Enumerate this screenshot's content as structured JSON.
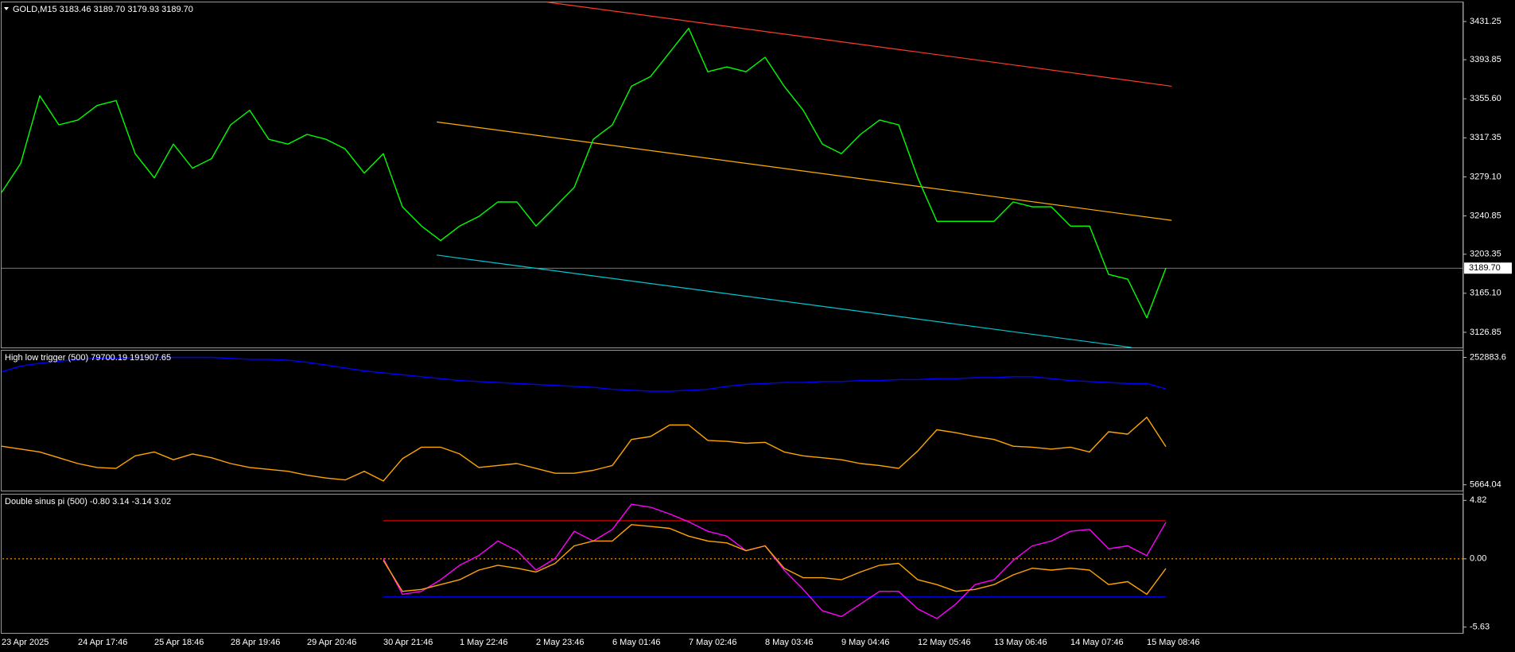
{
  "chart_data": [
    {
      "type": "line",
      "title": "GOLD,M15  3183.46 3189.70 3179.93 3189.70",
      "ylim": [
        3112,
        3450
      ],
      "yticks": [
        3431.25,
        3393.85,
        {
          "value": 3355.6,
          "label": "3355.60"
        },
        3317.35,
        {
          "value": 3279.1,
          "label": "3279.10"
        },
        3240.85,
        3203.35,
        {
          "value": 3165.1,
          "label": "3165.10"
        },
        3126.85
      ],
      "price_label": {
        "value": 3189.7,
        "label": "3189.70"
      },
      "series": [
        {
          "color": "#00ff00",
          "values": [
            3263.9,
            3292.3,
            3358.5,
            3330.1,
            3334.8,
            3349.0,
            3353.8,
            3301.8,
            3278.1,
            3311.2,
            3287.6,
            3297.0,
            3330.1,
            3344.3,
            3315.9,
            3311.2,
            3320.7,
            3315.9,
            3306.5,
            3282.8,
            3301.8,
            3249.8,
            3230.9,
            3216.7,
            3230.9,
            3240.3,
            3254.5,
            3254.5,
            3230.9,
            3249.8,
            3268.7,
            3315.9,
            3330.1,
            3367.9,
            3377.4,
            3401.0,
            3424.6,
            3382.1,
            3386.8,
            3382.1,
            3396.3,
            3367.9,
            3344.3,
            3311.2,
            3301.8,
            3320.7,
            3334.8,
            3330.1,
            3278.1,
            3235.6,
            3235.6,
            3235.6,
            3235.6,
            3254.5,
            3249.8,
            3249.8,
            3230.9,
            3230.9,
            3183.6,
            3178.9,
            3141.0,
            3189.7
          ]
        }
      ],
      "trendlines": [
        {
          "color": "#ff3a2a",
          "x": [
            28.6,
            61.3
          ],
          "values": [
            3450.2,
            3367.9
          ]
        },
        {
          "color": "#ffb000",
          "x": [
            22.8,
            61.3
          ],
          "values": [
            3332.9,
            3236.5
          ]
        },
        {
          "color": "#00c8d0",
          "x": [
            22.8,
            59.2
          ],
          "values": [
            3202.5,
            3112
          ]
        }
      ]
    },
    {
      "type": "line",
      "title": "High low trigger (500) 79700.19 191907.65",
      "ylim": [
        -5576,
        265993
      ],
      "yticks": [
        252883.6,
        5664.04
      ],
      "series": [
        {
          "color": "#0000ff",
          "values": [
            224790,
            236027,
            241646,
            245392,
            249138,
            251011,
            251011,
            252884,
            252884,
            252884,
            252884,
            252884,
            251011,
            249138,
            249138,
            247265,
            243519,
            237900,
            232281,
            226663,
            222917,
            219171,
            215425,
            211679,
            207933,
            206060,
            204187,
            202314,
            200442,
            198569,
            196696,
            194824,
            191078,
            189205,
            187332,
            187332,
            189205,
            191078,
            196696,
            200442,
            202314,
            204187,
            204187,
            206060,
            206060,
            207933,
            207933,
            209806,
            209806,
            211679,
            211679,
            213552,
            213552,
            215425,
            215425,
            211679,
            207933,
            206060,
            204187,
            202314,
            202314,
            191907.65
          ]
        },
        {
          "color": "#ffa500",
          "values": [
            80577,
            74958,
            69339,
            58102,
            46865,
            39373,
            37500,
            61848,
            69339,
            54356,
            65594,
            58102,
            46865,
            39373,
            35627,
            31881,
            24390,
            18771,
            15025,
            31881,
            13152,
            56229,
            78704,
            78704,
            65594,
            39373,
            43119,
            46865,
            37500,
            28136,
            28136,
            33754,
            43119,
            93687,
            99306,
            121781,
            121781,
            91814,
            89941,
            86195,
            88068,
            69339,
            61848,
            58102,
            54356,
            46865,
            43119,
            37500,
            71212,
            112416,
            106798,
            99306,
            93687,
            80577,
            78704,
            74958,
            78704,
            69339,
            108671,
            104051,
            136764,
            79700.19
          ]
        }
      ]
    },
    {
      "type": "line",
      "title": "Double sinus pi (500) -0.80 3.14 -3.14 3.02",
      "ylim": [
        -6.11,
        5.3
      ],
      "yticks": [
        4.82,
        {
          "value": 0,
          "label": "0.00"
        },
        -5.63
      ],
      "levels": [
        {
          "value": 3.14,
          "color": "#ff0000"
        },
        {
          "value": -3.14,
          "color": "#0000ff"
        },
        {
          "value": 0,
          "color": "#ffa500",
          "dashed": true
        }
      ],
      "categories": [
        "23 Apr 2025",
        null,
        null,
        null,
        "24 Apr 17:46",
        null,
        null,
        null,
        "25 Apr 18:46",
        null,
        null,
        null,
        "28 Apr 19:46",
        null,
        null,
        null,
        "29 Apr 20:46",
        null,
        null,
        null,
        "30 Apr 21:46",
        null,
        null,
        null,
        "1 May 22:46",
        null,
        null,
        null,
        "2 May 23:46",
        null,
        null,
        null,
        "6 May 01:46",
        null,
        null,
        null,
        "7 May 02:46",
        null,
        null,
        null,
        "8 May 03:46",
        null,
        null,
        null,
        "9 May 04:46",
        null,
        null,
        null,
        "12 May 05:46",
        null,
        null,
        null,
        "13 May 06:46",
        null,
        null,
        null,
        "14 May 07:46",
        null,
        null,
        null,
        "15 May 08:46",
        null
      ],
      "series": [
        {
          "color": "#ff00ff",
          "values": [
            null,
            null,
            null,
            null,
            null,
            null,
            null,
            null,
            null,
            null,
            null,
            null,
            null,
            null,
            null,
            null,
            null,
            null,
            null,
            null,
            0.03,
            -2.92,
            -2.68,
            -1.72,
            -0.53,
            0.27,
            1.47,
            0.67,
            -0.93,
            0.03,
            2.27,
            1.47,
            2.43,
            4.5,
            4.26,
            3.7,
            3.06,
            2.27,
            1.87,
            0.67,
            1.07,
            -0.93,
            -2.52,
            -4.28,
            -4.76,
            -3.72,
            -2.68,
            -2.68,
            -4.12,
            -4.92,
            -3.72,
            -2.12,
            -1.72,
            -0.13,
            1.07,
            1.47,
            2.27,
            2.43,
            0.83,
            1.07,
            0.27,
            3.02
          ]
        },
        {
          "color": "#ffa500",
          "values": [
            null,
            null,
            null,
            null,
            null,
            null,
            null,
            null,
            null,
            null,
            null,
            null,
            null,
            null,
            null,
            null,
            null,
            null,
            null,
            null,
            -0.13,
            -2.68,
            -2.52,
            -2.12,
            -1.72,
            -0.93,
            -0.53,
            -0.77,
            -1.09,
            -0.37,
            1.07,
            1.47,
            1.47,
            2.82,
            2.67,
            2.51,
            1.87,
            1.47,
            1.31,
            0.67,
            1.07,
            -0.77,
            -1.56,
            -1.56,
            -1.72,
            -1.09,
            -0.53,
            -0.37,
            -1.72,
            -2.12,
            -2.68,
            -2.52,
            -2.12,
            -1.32,
            -0.77,
            -0.93,
            -0.77,
            -0.93,
            -2.12,
            -1.88,
            -2.92,
            -0.8
          ]
        }
      ]
    }
  ]
}
